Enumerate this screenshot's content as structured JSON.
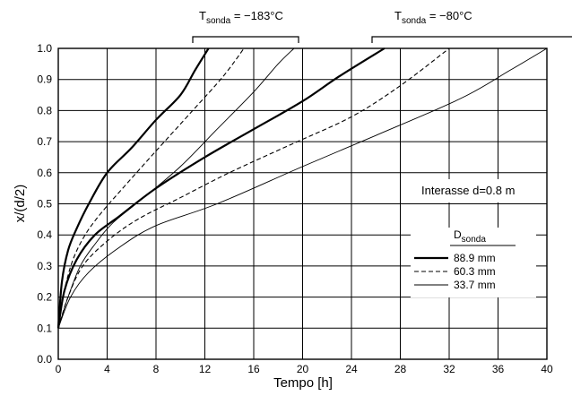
{
  "chart_data": {
    "type": "line",
    "xlabel": "Tempo  [h]",
    "ylabel": "x/(d/2)",
    "xlim": [
      0,
      40
    ],
    "ylim": [
      0.0,
      1.0
    ],
    "x_ticks": [
      0,
      4,
      8,
      12,
      16,
      20,
      24,
      28,
      32,
      36,
      40
    ],
    "y_ticks": [
      0.0,
      0.1,
      0.2,
      0.3,
      0.4,
      0.5,
      0.6,
      0.7,
      0.8,
      0.9,
      1.0
    ],
    "grid": true,
    "annotations": {
      "interasse": "Interasse d=0.8  m",
      "group1": {
        "prefix": "T",
        "sub": "sonda",
        "suffix": " = −183°C"
      },
      "group2": {
        "prefix": "T",
        "sub": "sonda",
        "suffix": " = −80°C"
      }
    },
    "legend": {
      "title_prefix": "D",
      "title_sub": "sonda",
      "entries": [
        "88.9  mm",
        "60.3  mm",
        "33.7  mm"
      ]
    },
    "series": [
      {
        "group": "-183",
        "style": "thick",
        "x": [
          0,
          0.3,
          0.8,
          1.5,
          2.5,
          4.0,
          6.0,
          8.0,
          10.0,
          11.2,
          12.3
        ],
        "y": [
          0.1,
          0.25,
          0.35,
          0.42,
          0.5,
          0.6,
          0.68,
          0.77,
          0.85,
          0.93,
          1.0
        ]
      },
      {
        "group": "-183",
        "style": "dashed",
        "x": [
          0,
          0.5,
          1.2,
          2.2,
          3.5,
          5.5,
          8.0,
          11.0,
          13.5,
          15.2
        ],
        "y": [
          0.1,
          0.22,
          0.32,
          0.4,
          0.47,
          0.56,
          0.67,
          0.8,
          0.91,
          1.0
        ]
      },
      {
        "group": "-183",
        "style": "thin",
        "x": [
          0,
          0.8,
          1.8,
          3.0,
          4.5,
          7.0,
          10.0,
          13.0,
          16.0,
          18.0,
          19.3
        ],
        "y": [
          0.1,
          0.2,
          0.3,
          0.37,
          0.44,
          0.52,
          0.62,
          0.74,
          0.86,
          0.95,
          1.0
        ]
      },
      {
        "group": "-80",
        "style": "thick",
        "x": [
          0,
          0.5,
          1.5,
          3.0,
          5.0,
          8.0,
          12.0,
          16.0,
          20.0,
          23.0,
          26.7
        ],
        "y": [
          0.1,
          0.22,
          0.32,
          0.4,
          0.46,
          0.55,
          0.65,
          0.74,
          0.83,
          0.91,
          1.0
        ]
      },
      {
        "group": "-80",
        "style": "dashed",
        "x": [
          0,
          0.8,
          2.0,
          4.0,
          6.5,
          10.0,
          14.0,
          19.0,
          24.0,
          28.0,
          32.0
        ],
        "y": [
          0.1,
          0.2,
          0.3,
          0.38,
          0.45,
          0.52,
          0.6,
          0.69,
          0.78,
          0.88,
          1.0
        ]
      },
      {
        "group": "-80",
        "style": "thin",
        "x": [
          0,
          1.0,
          2.5,
          5.0,
          8.0,
          13.0,
          20.0,
          26.0,
          33.0,
          37.0,
          40.0
        ],
        "y": [
          0.1,
          0.2,
          0.28,
          0.36,
          0.43,
          0.5,
          0.62,
          0.72,
          0.84,
          0.93,
          1.0
        ]
      }
    ]
  }
}
